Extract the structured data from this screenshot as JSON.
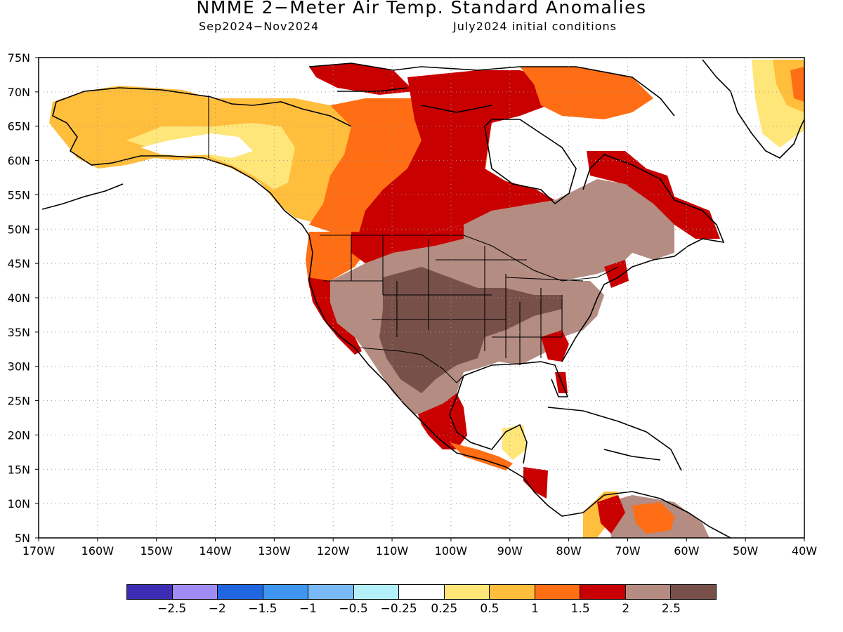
{
  "header": {
    "title": "NMME 2−Meter Air Temp. Standard Anomalies",
    "period": "Sep2024−Nov2024",
    "initial_conditions": "July2024 initial conditions"
  },
  "axes": {
    "lat_labels": [
      "75N",
      "70N",
      "65N",
      "60N",
      "55N",
      "50N",
      "45N",
      "40N",
      "35N",
      "30N",
      "25N",
      "20N",
      "15N",
      "10N",
      "5N"
    ],
    "lon_labels": [
      "170W",
      "160W",
      "150W",
      "140W",
      "130W",
      "120W",
      "110W",
      "100W",
      "90W",
      "80W",
      "70W",
      "60W",
      "50W",
      "40W"
    ],
    "lat_range": [
      5,
      75
    ],
    "lon_range": [
      -170,
      -40
    ],
    "grid": "dotted"
  },
  "legend": {
    "colors": [
      "#3c2db5",
      "#a08cf5",
      "#2166e0",
      "#3f96f0",
      "#78b9f7",
      "#b4f0fa",
      "#ffffff",
      "#ffe678",
      "#ffbe3c",
      "#ff6e14",
      "#c80000",
      "#b48c82",
      "#78504a"
    ],
    "labels": [
      "−2.5",
      "−2",
      "−1.5",
      "−1",
      "−0.5",
      "−0.25",
      "0.25",
      "0.5",
      "1",
      "1.5",
      "2",
      "2.5"
    ]
  },
  "colors": {
    "white": "#ffffff",
    "yellow_0_25": "#ffe678",
    "orange_0_5": "#ffbe3c",
    "orange_1": "#ff6e14",
    "red_1_5": "#c80000",
    "brown_2": "#b48c82",
    "darkbrown_2_5": "#78504a",
    "lightblue": "#b4f0fa"
  }
}
